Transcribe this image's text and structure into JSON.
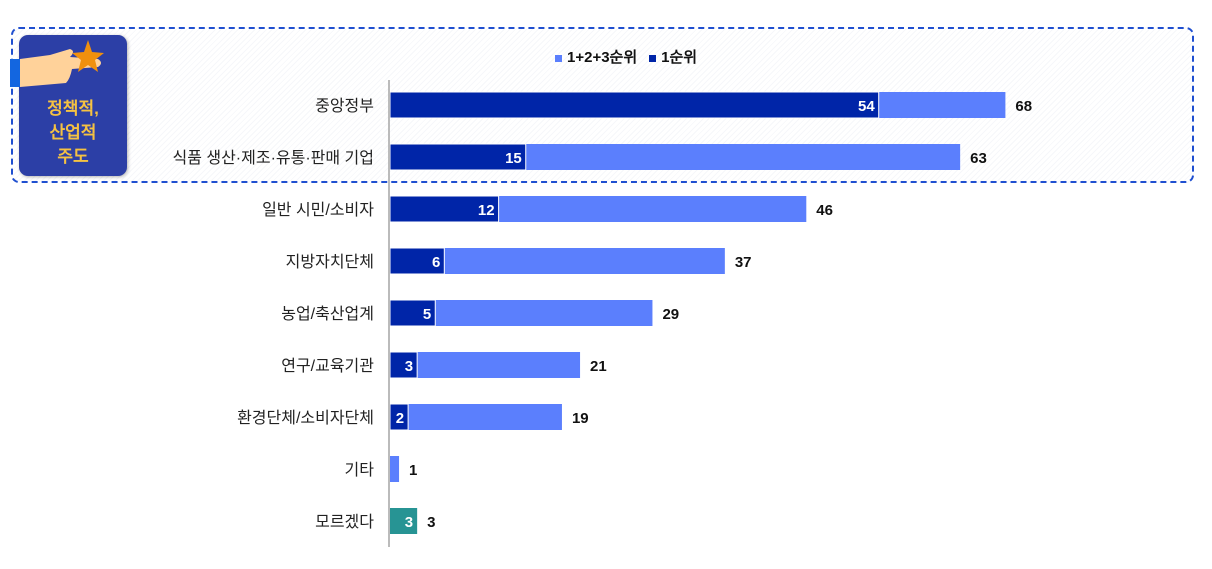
{
  "badge": {
    "lines": [
      "정책적,",
      "산업적",
      "주도"
    ],
    "icon": "pointing-hand-star-icon"
  },
  "colors": {
    "top3": "#5b7ffd",
    "first": "#0025a8",
    "other": "#279494"
  },
  "chart_data": {
    "type": "bar",
    "orientation": "horizontal",
    "stacked_overlay": true,
    "legend": [
      "1+2+3순위",
      "1순위"
    ],
    "legend_position": "top",
    "categories": [
      "중앙정부",
      "식품 생산·제조·유통·판매 기업",
      "일반 시민/소비자",
      "지방자치단체",
      "농업/축산업계",
      "연구/교육기관",
      "환경단체/소비자단체",
      "기타",
      "모르겠다"
    ],
    "series": [
      {
        "name": "1+2+3순위",
        "values": [
          68,
          63,
          46,
          37,
          29,
          21,
          19,
          1,
          null
        ]
      },
      {
        "name": "1순위",
        "values": [
          54,
          15,
          12,
          6,
          5,
          3,
          2,
          null,
          3
        ]
      }
    ],
    "xlim": [
      0,
      70
    ],
    "highlighted_categories": [
      "중앙정부",
      "식품 생산·제조·유통·판매 기업"
    ]
  }
}
